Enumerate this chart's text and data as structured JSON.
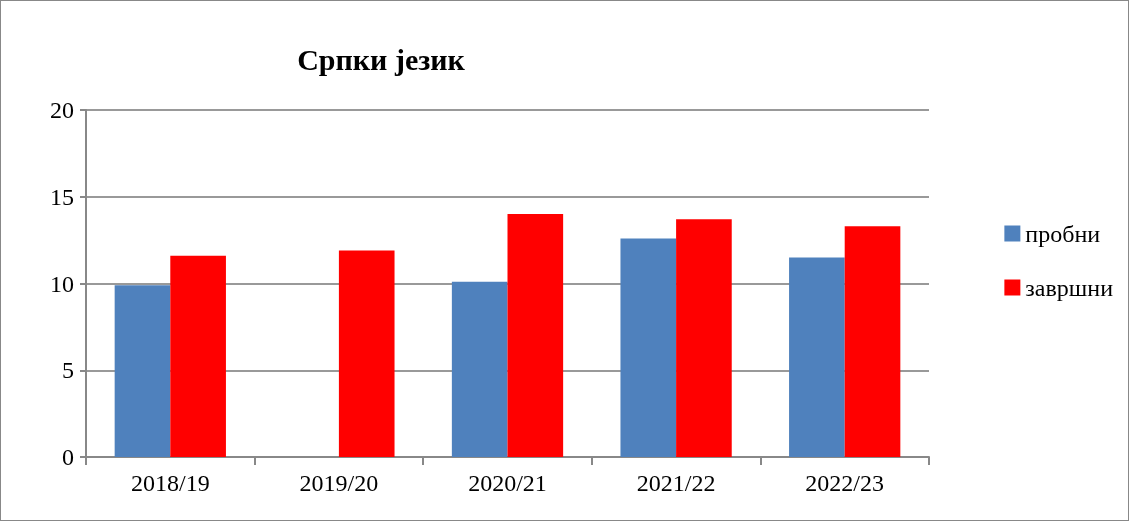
{
  "chart_data": {
    "type": "bar",
    "title": "Српки језик",
    "categories": [
      "2018/19",
      "2019/20",
      "2020/21",
      "2021/22",
      "2022/23"
    ],
    "series": [
      {
        "name": "пробни",
        "color": "#4f81bd",
        "values": [
          9.9,
          null,
          10.1,
          12.6,
          11.5
        ]
      },
      {
        "name": "завршни",
        "color": "#ff0000",
        "values": [
          11.6,
          11.9,
          14.0,
          13.7,
          13.3
        ]
      }
    ],
    "ylim": [
      0,
      20
    ],
    "yticks": [
      0,
      5,
      10,
      15,
      20
    ],
    "grid": "y",
    "legend": "right"
  }
}
